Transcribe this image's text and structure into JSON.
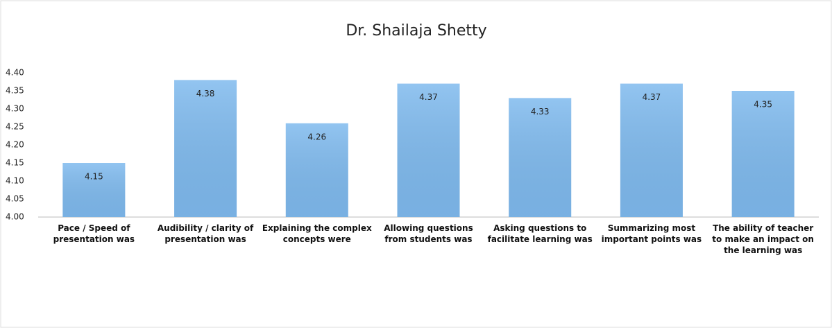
{
  "chart_data": {
    "type": "bar",
    "title": "Dr. Shailaja Shetty",
    "categories": [
      "Pace / Speed of\npresentation was",
      "Audibility / clarity of\npresentation was",
      "Explaining the complex\nconcepts were",
      "Allowing questions\nfrom students was",
      "Asking questions to\nfacilitate learning was",
      "Summarizing most\nimportant points was",
      "The ability of teacher\nto make an impact on\nthe learning was"
    ],
    "values": [
      4.15,
      4.38,
      4.26,
      4.37,
      4.33,
      4.37,
      4.35
    ],
    "color": "#7fbaee",
    "ylim": [
      4.0,
      4.4
    ],
    "yticks": [
      {
        "value": 4.0,
        "label": "4.00"
      },
      {
        "value": 4.05,
        "label": "4.05"
      },
      {
        "value": 4.1,
        "label": "4.10"
      },
      {
        "value": 4.15,
        "label": "4.15"
      },
      {
        "value": 4.2,
        "label": "4.20"
      },
      {
        "value": 4.25,
        "label": "4.25"
      },
      {
        "value": 4.3,
        "label": "4.30"
      },
      {
        "value": 4.35,
        "label": "4.35"
      },
      {
        "value": 4.4,
        "label": "4.40"
      }
    ],
    "grid": false
  }
}
